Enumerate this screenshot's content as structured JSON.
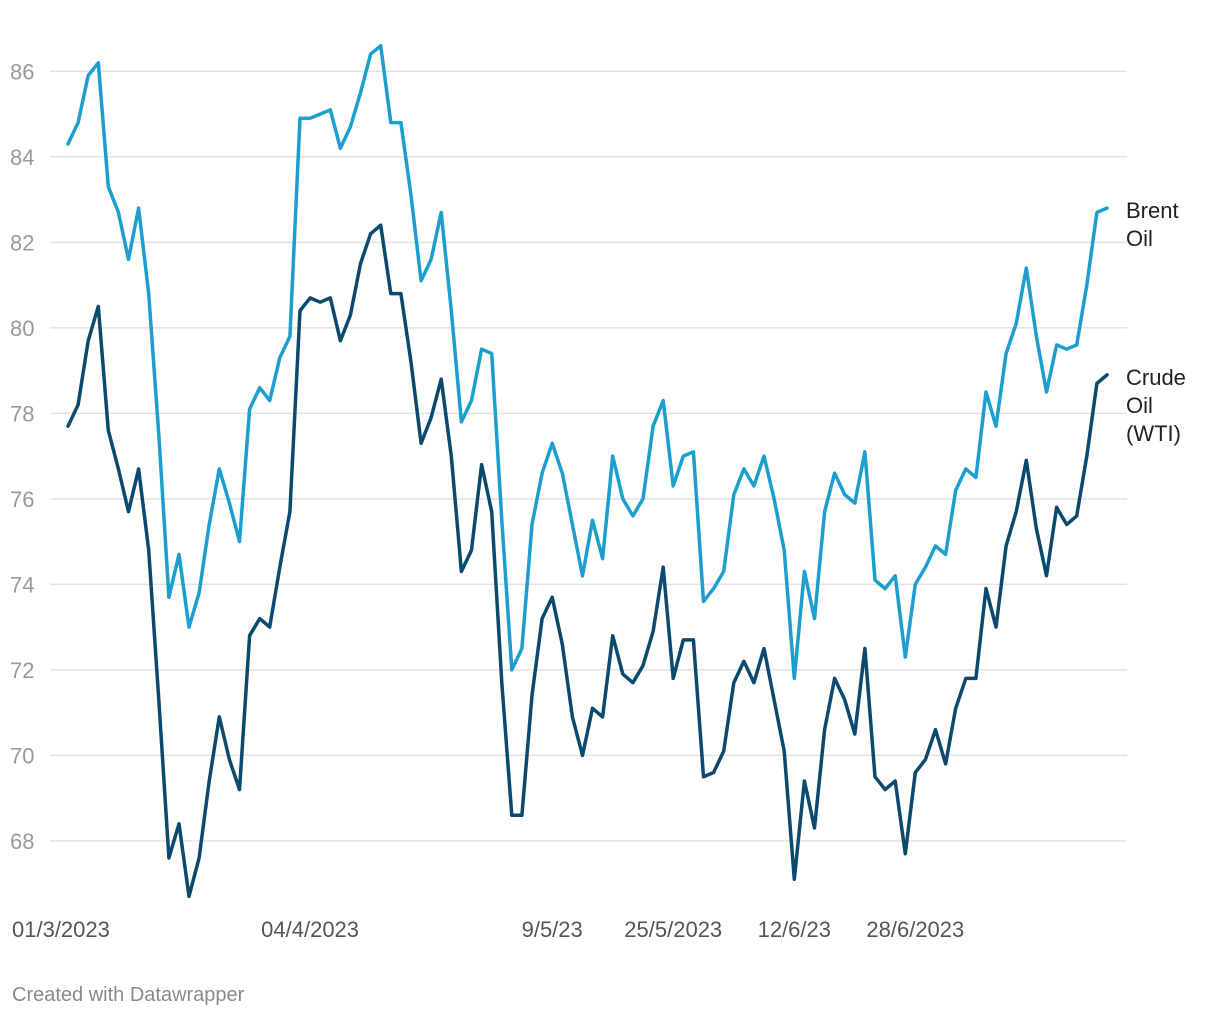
{
  "chart_data": {
    "type": "line",
    "y_ticks": [
      68,
      70,
      72,
      74,
      76,
      78,
      80,
      82,
      84,
      86
    ],
    "ylim": [
      66.5,
      87.2
    ],
    "grid": true,
    "x_tick_labels": [
      {
        "index": 0,
        "label": "01/3/2023"
      },
      {
        "index": 24,
        "label": "04/4/2023"
      },
      {
        "index": 48,
        "label": "9/5/23"
      },
      {
        "index": 60,
        "label": "25/5/2023"
      },
      {
        "index": 72,
        "label": "12/6/23"
      },
      {
        "index": 84,
        "label": "28/6/2023"
      }
    ],
    "n_points": 104,
    "series": [
      {
        "name": "Brent Oil",
        "label_lines": [
          "Brent",
          "Oil"
        ],
        "color": "#1c9fce",
        "values": [
          84.3,
          84.8,
          85.9,
          86.2,
          83.3,
          82.7,
          81.6,
          82.8,
          80.8,
          77.5,
          73.7,
          74.7,
          73.0,
          73.8,
          75.4,
          76.7,
          75.9,
          75.0,
          78.1,
          78.6,
          78.3,
          79.3,
          79.8,
          84.9,
          84.9,
          85.0,
          85.1,
          84.2,
          84.7,
          85.5,
          86.4,
          86.6,
          84.8,
          84.8,
          83.1,
          81.1,
          81.6,
          82.7,
          80.4,
          77.8,
          78.3,
          79.5,
          79.4,
          75.5,
          72.0,
          72.5,
          75.4,
          76.6,
          77.3,
          76.6,
          75.4,
          74.2,
          75.5,
          74.6,
          77.0,
          76.0,
          75.6,
          76.0,
          77.7,
          78.3,
          76.3,
          77.0,
          77.1,
          73.6,
          73.9,
          74.3,
          76.1,
          76.7,
          76.3,
          77.0,
          76.0,
          74.8,
          71.8,
          74.3,
          73.2,
          75.7,
          76.6,
          76.1,
          75.9,
          77.1,
          74.1,
          73.9,
          74.2,
          72.3,
          74.0,
          74.4,
          74.9,
          74.7,
          76.2,
          76.7,
          76.5,
          78.5,
          77.7,
          79.4,
          80.1,
          81.4,
          79.8,
          78.5,
          79.6,
          79.5,
          79.6,
          81.0,
          82.7,
          82.8
        ]
      },
      {
        "name": "Crude Oil (WTI)",
        "label_lines": [
          "Crude",
          "Oil",
          "(WTI)"
        ],
        "color": "#0b4a6e",
        "values": [
          77.7,
          78.2,
          79.7,
          80.5,
          77.6,
          76.7,
          75.7,
          76.7,
          74.8,
          71.3,
          67.6,
          68.4,
          66.7,
          67.6,
          69.4,
          70.9,
          69.9,
          69.2,
          72.8,
          73.2,
          73.0,
          74.4,
          75.7,
          80.4,
          80.7,
          80.6,
          80.7,
          79.7,
          80.3,
          81.5,
          82.2,
          82.4,
          80.8,
          80.8,
          79.2,
          77.3,
          77.9,
          78.8,
          77.0,
          74.3,
          74.8,
          76.8,
          75.7,
          71.7,
          68.6,
          68.6,
          71.4,
          73.2,
          73.7,
          72.6,
          70.9,
          70.0,
          71.1,
          70.9,
          72.8,
          71.9,
          71.7,
          72.1,
          72.9,
          74.4,
          71.8,
          72.7,
          72.7,
          69.5,
          69.6,
          70.1,
          71.7,
          72.2,
          71.7,
          72.5,
          71.3,
          70.1,
          67.1,
          69.4,
          68.3,
          70.6,
          71.8,
          71.3,
          70.5,
          72.5,
          69.5,
          69.2,
          69.4,
          67.7,
          69.6,
          69.9,
          70.6,
          69.8,
          71.1,
          71.8,
          71.8,
          73.9,
          73.0,
          74.9,
          75.7,
          76.9,
          75.3,
          74.2,
          75.8,
          75.4,
          75.6,
          77.0,
          78.7,
          78.9
        ]
      }
    ]
  },
  "footer": {
    "credit": "Created with Datawrapper"
  }
}
